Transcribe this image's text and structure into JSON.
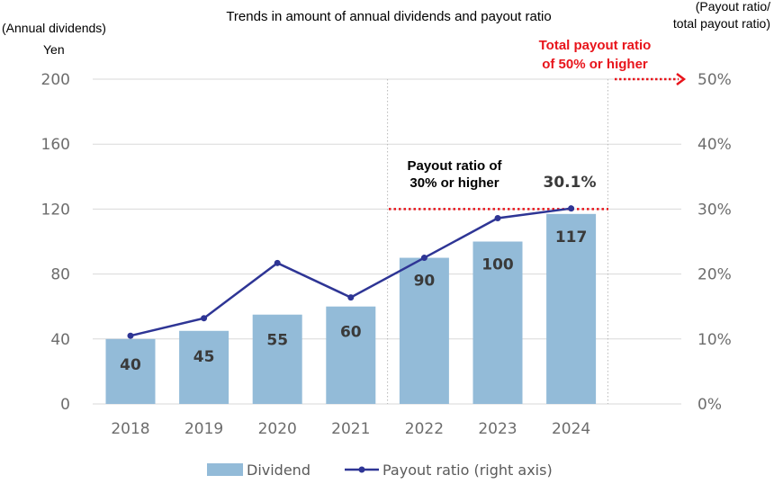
{
  "chart_data": {
    "type": "bar",
    "title": "Trends in amount of annual dividends and payout ratio",
    "categories": [
      "2018",
      "2019",
      "2020",
      "2021",
      "2022",
      "2023",
      "2024"
    ],
    "series": [
      {
        "name": "Dividend",
        "type": "bar",
        "axis": "left",
        "values": [
          40,
          45,
          55,
          60,
          90,
          100,
          117
        ],
        "data_labels": [
          "40",
          "45",
          "55",
          "60",
          "90",
          "100",
          "117"
        ],
        "color": "#93bbd8"
      },
      {
        "name": "Payout ratio (right axis)",
        "type": "line",
        "axis": "right",
        "values": [
          10.5,
          13.2,
          21.7,
          16.4,
          22.5,
          28.6,
          30.1
        ],
        "color": "#2e3595"
      }
    ],
    "y_left": {
      "label_line1": "(Annual dividends)",
      "label_line2": "Yen",
      "ticks": [
        "0",
        "40",
        "80",
        "120",
        "160",
        "200"
      ],
      "ylim": [
        0,
        200
      ]
    },
    "y_right": {
      "label_line1": "(Payout ratio/",
      "label_line2": "total payout ratio)",
      "ticks": [
        "0%",
        "10%",
        "20%",
        "30%",
        "40%",
        "50%"
      ],
      "ylim": [
        0,
        50
      ]
    },
    "grid": true,
    "legend_position": "bottom",
    "annotations": {
      "payout30_line1": "Payout ratio of",
      "payout30_line2": "30% or higher",
      "payout30_value": 30,
      "total50_line1": "Total payout ratio",
      "total50_line2": "of 50% or higher",
      "total50_value": 50,
      "last_point_label": "30.1%"
    },
    "colors": {
      "bar": "#93bbd8",
      "line": "#2e3595",
      "target": "#e8141b",
      "grid": "#d9d9d9"
    }
  }
}
